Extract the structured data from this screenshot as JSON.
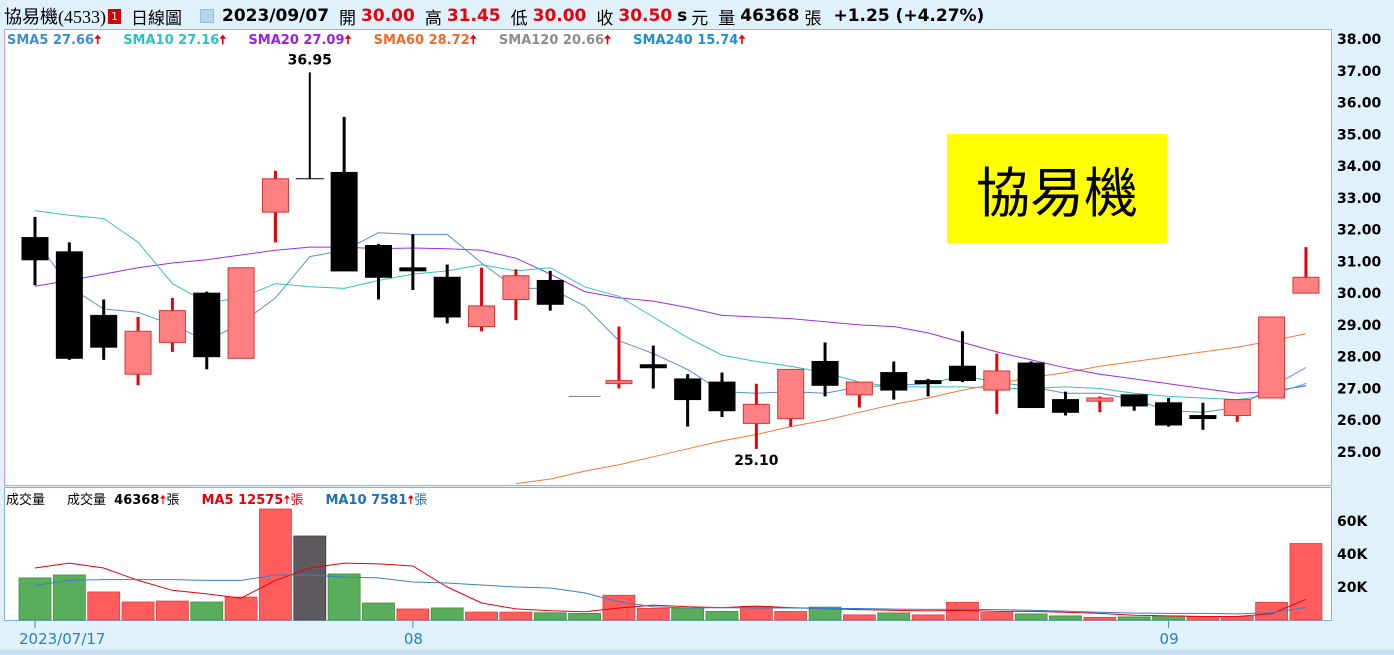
{
  "header": {
    "stock_name": "協易機(4533)",
    "badge": "1",
    "chart_type": "日線圖",
    "date": "2023/09/07",
    "open_label": "開",
    "open": "30.00",
    "high_label": "高",
    "high": "31.45",
    "low_label": "低",
    "low": "30.00",
    "close_label": "收",
    "close": "30.50",
    "suffix_s": "s",
    "currency": "元",
    "volume_label": "量",
    "volume": "46368",
    "volume_unit": "張",
    "change": "+1.25 (+4.27%)"
  },
  "ma_legend": [
    {
      "label": "SMA5 27.66",
      "color": "#3d8bd9"
    },
    {
      "label": "SMA10 27.16",
      "color": "#29c2c2"
    },
    {
      "label": "SMA20 27.09",
      "color": "#9a1ee6"
    },
    {
      "label": "SMA60 28.72",
      "color": "#f06a2a"
    },
    {
      "label": "SMA120 20.66",
      "color": "#8c8c8c"
    },
    {
      "label": "SMA240 15.74",
      "color": "#1e8fd0"
    }
  ],
  "arrow_up": "🠅",
  "stamp_text": "協易機",
  "volume_legend": {
    "title": "成交量",
    "vol": "成交量",
    "vol_value": "46368",
    "unit": "張",
    "ma5": "MA5 12575",
    "ma5_color": "#e8000b",
    "ma10": "MA10 7581",
    "ma10_color": "#1e6fb8"
  },
  "colors": {
    "up_fill": "#ff8080",
    "up_line": "#e8000b",
    "down": "#000000",
    "flat": "#8c8c8c",
    "vol_up": "#ff5c5c",
    "vol_down": "#5aad5a",
    "vol_flat": "#5f5a60",
    "panel_border": "#e090e0"
  },
  "chart_data": {
    "type": "candlestick",
    "price_axis": {
      "ticks": [
        "38.00",
        "37.00",
        "36.00",
        "35.00",
        "34.00",
        "33.00",
        "32.00",
        "31.00",
        "30.00",
        "29.00",
        "28.00",
        "27.00",
        "26.00",
        "25.00"
      ],
      "range": [
        24.0,
        38.3
      ]
    },
    "volume_axis": {
      "ticks": [
        "60K",
        "40K",
        "20K"
      ],
      "range": [
        0,
        80000
      ]
    },
    "x_labels": [
      {
        "index": 0,
        "label": "2023/07/17"
      },
      {
        "index": 11,
        "label": "08"
      },
      {
        "index": 33,
        "label": "09"
      }
    ],
    "annotations": [
      {
        "index": 8,
        "label": "36.95",
        "type": "high"
      },
      {
        "index": 21,
        "label": "25.10",
        "type": "low"
      }
    ],
    "ohlc": [
      [
        31.75,
        32.4,
        30.25,
        31.05
      ],
      [
        31.3,
        31.6,
        27.9,
        27.95
      ],
      [
        29.3,
        29.8,
        27.9,
        28.3
      ],
      [
        27.45,
        29.25,
        27.1,
        28.8
      ],
      [
        28.45,
        29.85,
        28.15,
        29.45
      ],
      [
        30.0,
        30.05,
        27.6,
        28.0
      ],
      [
        27.95,
        30.8,
        27.95,
        30.8
      ],
      [
        32.55,
        33.85,
        31.6,
        33.6
      ],
      [
        33.6,
        36.95,
        33.6,
        33.6
      ],
      [
        33.8,
        35.55,
        30.7,
        30.7
      ],
      [
        31.5,
        31.55,
        29.8,
        30.5
      ],
      [
        30.75,
        31.85,
        30.1,
        30.7
      ],
      [
        30.5,
        30.9,
        29.05,
        29.25
      ],
      [
        28.95,
        30.8,
        28.8,
        29.6
      ],
      [
        29.8,
        30.75,
        29.15,
        30.55
      ],
      [
        30.4,
        30.7,
        29.45,
        29.65
      ],
      [
        26.75,
        26.75,
        26.75,
        26.75
      ],
      [
        27.15,
        28.95,
        27.0,
        27.2
      ],
      [
        27.7,
        28.35,
        27.0,
        27.65
      ],
      [
        27.3,
        27.45,
        25.8,
        26.65
      ],
      [
        27.2,
        27.5,
        26.1,
        26.3
      ],
      [
        25.9,
        27.15,
        25.1,
        26.5
      ],
      [
        26.05,
        27.6,
        25.8,
        27.6
      ],
      [
        27.85,
        28.45,
        26.75,
        27.1
      ],
      [
        26.8,
        27.2,
        26.4,
        27.2
      ],
      [
        27.5,
        27.85,
        26.65,
        26.95
      ],
      [
        27.2,
        27.3,
        26.75,
        27.15
      ],
      [
        27.7,
        28.8,
        27.2,
        27.25
      ],
      [
        26.95,
        28.1,
        26.2,
        27.55
      ],
      [
        27.8,
        27.85,
        26.4,
        26.4
      ],
      [
        26.65,
        26.9,
        26.15,
        26.25
      ],
      [
        26.6,
        26.75,
        26.25,
        26.7
      ],
      [
        26.8,
        26.8,
        26.3,
        26.45
      ],
      [
        26.55,
        26.7,
        25.8,
        25.85
      ],
      [
        26.1,
        26.55,
        25.7,
        26.1
      ],
      [
        26.15,
        26.65,
        25.95,
        26.65
      ],
      [
        26.7,
        29.25,
        26.7,
        29.25
      ],
      [
        30.0,
        31.45,
        30.0,
        30.5
      ]
    ],
    "sma5": [
      31.7,
      30.2,
      29.5,
      29.4,
      29.0,
      28.5,
      29.05,
      29.85,
      31.15,
      31.35,
      31.9,
      31.85,
      31.85,
      30.95,
      30.15,
      30.15,
      29.6,
      28.5,
      28.1,
      27.6,
      26.9,
      26.85,
      26.9,
      26.85,
      27.05,
      27.1,
      27.15,
      27.4,
      27.2,
      27.05,
      26.85,
      26.85,
      26.65,
      26.3,
      26.25,
      26.4,
      27.05,
      27.66
    ],
    "sma10": [
      32.6,
      32.45,
      32.35,
      31.6,
      30.3,
      29.7,
      29.85,
      30.3,
      30.2,
      30.15,
      30.4,
      30.6,
      30.7,
      30.9,
      30.7,
      30.8,
      30.2,
      29.9,
      29.25,
      28.6,
      28.05,
      27.85,
      27.7,
      27.5,
      27.2,
      27.05,
      27.05,
      27.05,
      27.0,
      27.0,
      27.05,
      27.0,
      26.85,
      26.75,
      26.7,
      26.65,
      26.8,
      27.16
    ],
    "sma20": [
      30.22,
      30.4,
      30.6,
      30.8,
      30.95,
      31.05,
      31.2,
      31.35,
      31.45,
      31.45,
      31.4,
      31.42,
      31.4,
      31.35,
      31.1,
      30.6,
      30.05,
      29.85,
      29.75,
      29.55,
      29.3,
      29.25,
      29.2,
      29.1,
      29.0,
      28.95,
      28.75,
      28.45,
      28.15,
      27.9,
      27.65,
      27.45,
      27.3,
      27.15,
      27.0,
      26.85,
      26.9,
      27.09
    ],
    "sma60": [
      null,
      null,
      null,
      null,
      null,
      null,
      null,
      null,
      null,
      null,
      null,
      null,
      null,
      null,
      24.0,
      24.15,
      24.4,
      24.6,
      24.85,
      25.1,
      25.35,
      25.55,
      25.8,
      26.0,
      26.25,
      26.5,
      26.7,
      26.95,
      27.15,
      27.35,
      27.5,
      27.7,
      27.85,
      28.0,
      28.15,
      28.3,
      28.5,
      28.72
    ],
    "volume": [
      25500,
      27300,
      17000,
      10900,
      11500,
      10900,
      13900,
      67300,
      50900,
      27900,
      10300,
      6700,
      7300,
      4800,
      4800,
      4400,
      4000,
      15000,
      7100,
      7200,
      5200,
      8200,
      5200,
      7800,
      3100,
      4300,
      3100,
      10700,
      4500,
      3700,
      2500,
      1600,
      1900,
      2500,
      2100,
      2100,
      10700,
      46368
    ],
    "volume_dir": [
      "down",
      "down",
      "up",
      "up",
      "up",
      "down",
      "up",
      "up",
      "flat",
      "down",
      "down",
      "up",
      "down",
      "up",
      "up",
      "down",
      "down",
      "up",
      "up",
      "down",
      "down",
      "up",
      "up",
      "down",
      "up",
      "down",
      "up",
      "up",
      "up",
      "down",
      "down",
      "up",
      "down",
      "down",
      "up",
      "up",
      "up",
      "up"
    ],
    "vol_ma5": [
      31500,
      34500,
      31500,
      24000,
      18000,
      15800,
      13300,
      24000,
      31500,
      34500,
      34000,
      32700,
      20000,
      10300,
      6700,
      5600,
      5000,
      7300,
      9000,
      8000,
      7500,
      8400,
      7500,
      6900,
      6300,
      5800,
      5500,
      5800,
      5200,
      5200,
      4700,
      4000,
      2900,
      2500,
      2100,
      2100,
      3800,
      12575
    ],
    "vol_ma10": [
      21000,
      24000,
      24500,
      24500,
      24500,
      24000,
      24000,
      27300,
      27300,
      26000,
      25500,
      23000,
      22400,
      21200,
      20000,
      19400,
      16400,
      11000,
      8000,
      7300,
      7500,
      7300,
      7300,
      7000,
      7000,
      6600,
      6400,
      6500,
      6300,
      5900,
      5400,
      4700,
      4200,
      4000,
      4000,
      3700,
      4500,
      7581
    ]
  }
}
